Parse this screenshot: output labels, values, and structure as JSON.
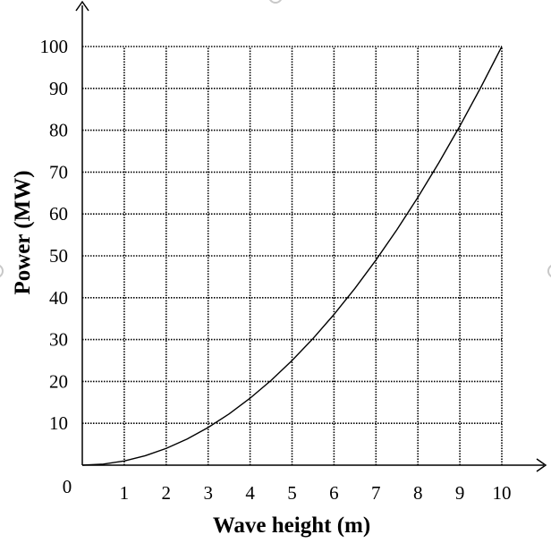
{
  "chart_data": {
    "type": "line",
    "xlabel": "Wave height (m)",
    "ylabel": "Power (MW)",
    "xlim": [
      0,
      10
    ],
    "ylim": [
      0,
      100
    ],
    "origin_label": "0",
    "xticks": [
      1,
      2,
      3,
      4,
      5,
      6,
      7,
      8,
      9,
      10
    ],
    "yticks": [
      10,
      20,
      30,
      40,
      50,
      60,
      70,
      80,
      90,
      100
    ],
    "grid": true,
    "series": [
      {
        "x": [
          0,
          0.5,
          1,
          1.5,
          2,
          2.5,
          3,
          3.5,
          4,
          4.5,
          5,
          5.5,
          6,
          6.5,
          7,
          7.5,
          8,
          8.5,
          9,
          9.5,
          10
        ],
        "y": [
          0,
          0.25,
          1,
          2.25,
          4,
          6.25,
          9,
          12.25,
          16,
          20.25,
          25,
          30.25,
          36,
          42.25,
          49,
          56.25,
          64,
          72.25,
          81,
          90.25,
          100
        ]
      }
    ]
  }
}
